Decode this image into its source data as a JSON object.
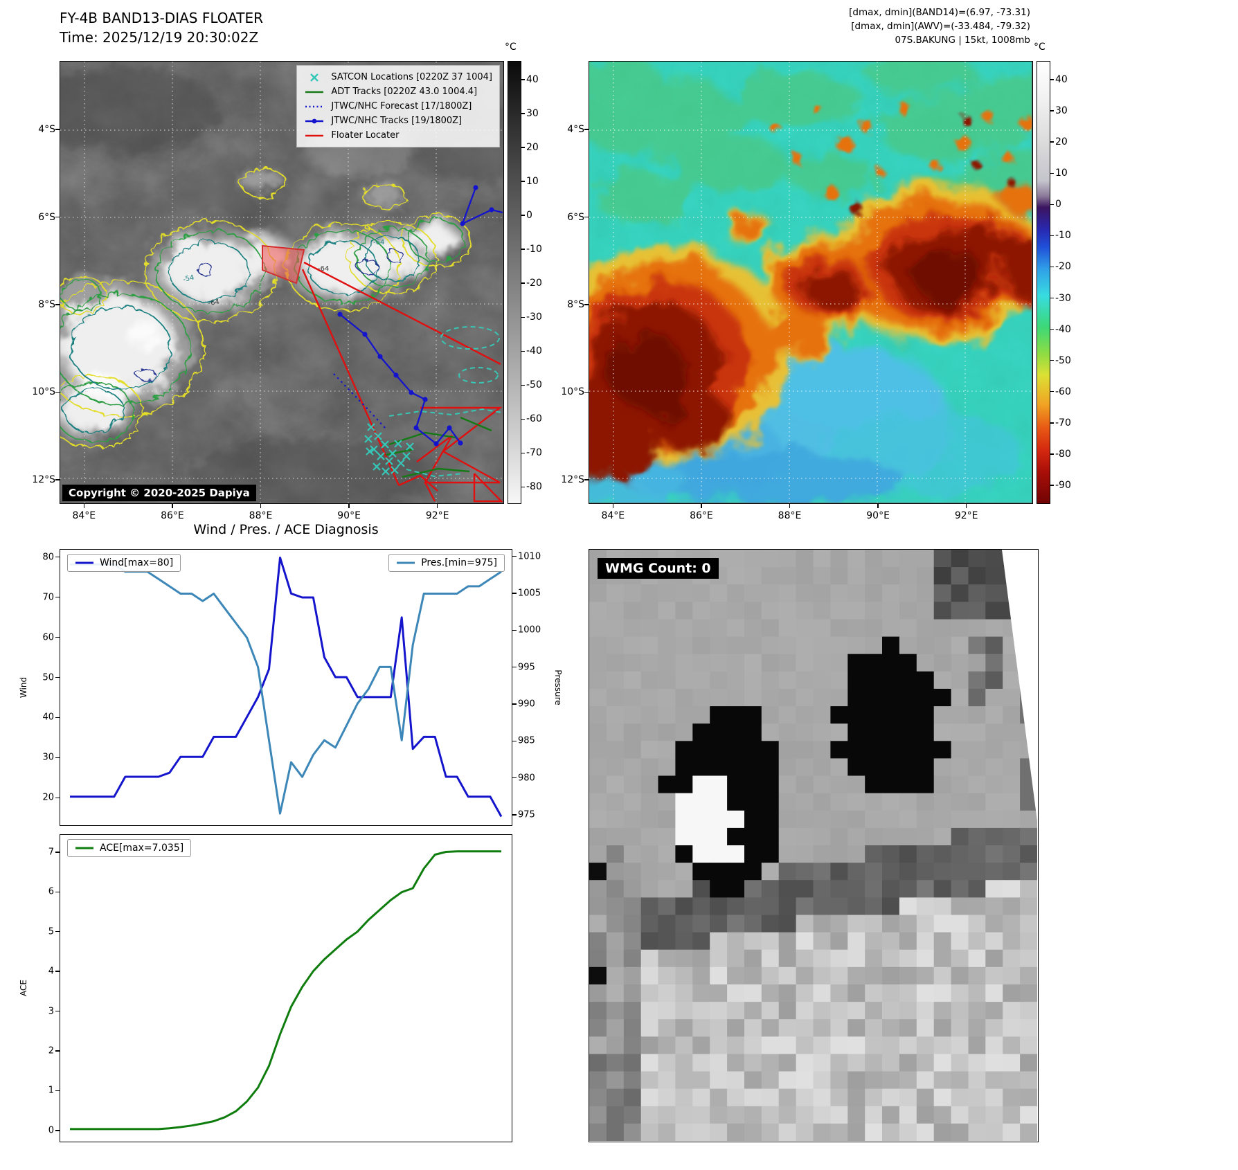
{
  "panel_ir": {
    "title_line1": "FY-4B BAND13-DIAS FLOATER",
    "title_line2": "Time: 2025/12/19 20:30:02Z",
    "copyright": "Copyright © 2020-2025 Dapiya",
    "legend": [
      {
        "label": "SATCON Locations [0220Z 37 1004]",
        "marker": "x",
        "color": "#35c8b8"
      },
      {
        "label": "ADT Tracks [0220Z 43.0 1004.4]",
        "marker": "solid-line",
        "color": "#157a15"
      },
      {
        "label": "JTWC/NHC Forecast [17/1800Z]",
        "marker": "dotted-line",
        "color": "#1414cc"
      },
      {
        "label": "JTWC/NHC Tracks [19/1800Z]",
        "marker": "line-with-dot",
        "color": "#1414cc"
      },
      {
        "label": "Floater Locater",
        "marker": "solid-line",
        "color": "#e01010"
      }
    ],
    "colorbar": {
      "unit": "°C",
      "ticks": [
        40,
        30,
        20,
        10,
        0,
        -10,
        -20,
        -30,
        -40,
        -50,
        -60,
        -70,
        -80
      ]
    },
    "lat_ticks": [
      "4°S",
      "6°S",
      "8°S",
      "10°S",
      "12°S"
    ],
    "lon_ticks": [
      "84°E",
      "86°E",
      "88°E",
      "90°E",
      "92°E"
    ],
    "contour_labels": [
      "-54",
      "-64",
      "-64",
      "-64"
    ]
  },
  "panel_awv": {
    "header_line1": "[dmax, dmin](BAND14)=(6.97, -73.31)",
    "header_line2": "[dmax, dmin](AWV)=(-33.484, -79.32)",
    "header_line3": "07S.BAKUNG | 15kt, 1008mb",
    "colorbar": {
      "unit": "°C",
      "ticks": [
        40,
        30,
        20,
        10,
        0,
        -10,
        -20,
        -30,
        -40,
        -50,
        -60,
        -70,
        -80,
        -90
      ]
    },
    "lat_ticks": [
      "4°S",
      "6°S",
      "8°S",
      "10°S",
      "12°S"
    ],
    "lon_ticks": [
      "84°E",
      "86°E",
      "88°E",
      "90°E",
      "92°E"
    ]
  },
  "diagnosis": {
    "title": "Wind / Pres. / ACE Diagnosis",
    "wind_legend": "Wind[max=80]",
    "pres_legend": "Pres.[min=975]",
    "ace_legend": "ACE[max=7.035]",
    "wind_ylabel": "Wind",
    "pres_ylabel": "Pressure",
    "ace_ylabel": "ACE",
    "wind_max": 80,
    "pres_min": 975,
    "ace_max": 7.035
  },
  "wmg": {
    "label": "WMG Count: 0",
    "count": 0
  },
  "chart_data": [
    {
      "type": "line",
      "title": "Wind / Pres. / ACE Diagnosis",
      "x_points": 40,
      "series": [
        {
          "name": "Wind[max=80]",
          "axis": "left",
          "color": "#1414cc",
          "values": [
            20,
            20,
            20,
            20,
            20,
            25,
            25,
            25,
            25,
            26,
            30,
            30,
            30,
            35,
            35,
            35,
            40,
            45,
            52,
            80,
            71,
            70,
            70,
            55,
            50,
            50,
            45,
            45,
            45,
            45,
            65,
            32,
            35,
            35,
            25,
            25,
            20,
            20,
            20,
            15
          ]
        },
        {
          "name": "Pres.[min=975]",
          "axis": "right",
          "color": "#3c87b8",
          "values": [
            1009,
            1009,
            1009,
            1009,
            1009,
            1008,
            1008,
            1008,
            1007,
            1006,
            1005,
            1005,
            1004,
            1005,
            1003,
            1001,
            999,
            995,
            985,
            975,
            982,
            980,
            983,
            985,
            984,
            987,
            990,
            992,
            995,
            995,
            985,
            998,
            1005,
            1005,
            1005,
            1005,
            1006,
            1006,
            1007,
            1008
          ]
        }
      ],
      "left_axis": {
        "label": "Wind",
        "ticks": [
          20,
          30,
          40,
          50,
          60,
          70,
          80
        ],
        "range": [
          13,
          82
        ]
      },
      "right_axis": {
        "label": "Pressure",
        "ticks": [
          975,
          980,
          985,
          990,
          995,
          1000,
          1005,
          1010
        ],
        "range": [
          973.5,
          1011
        ]
      }
    },
    {
      "type": "line",
      "x_points": 40,
      "series": [
        {
          "name": "ACE[max=7.035]",
          "axis": "left",
          "color": "#0e7d0e",
          "values": [
            0,
            0,
            0,
            0,
            0,
            0,
            0,
            0,
            0,
            0.02,
            0.05,
            0.09,
            0.14,
            0.2,
            0.3,
            0.45,
            0.7,
            1.05,
            1.6,
            2.4,
            3.1,
            3.6,
            4.0,
            4.3,
            4.55,
            4.8,
            5.0,
            5.3,
            5.55,
            5.8,
            6.0,
            6.1,
            6.6,
            6.95,
            7.02,
            7.035,
            7.035,
            7.035,
            7.035,
            7.035
          ]
        }
      ],
      "left_axis": {
        "label": "ACE",
        "ticks": [
          0,
          1,
          2,
          3,
          4,
          5,
          6,
          7
        ],
        "range": [
          -0.3,
          7.45
        ]
      }
    }
  ]
}
